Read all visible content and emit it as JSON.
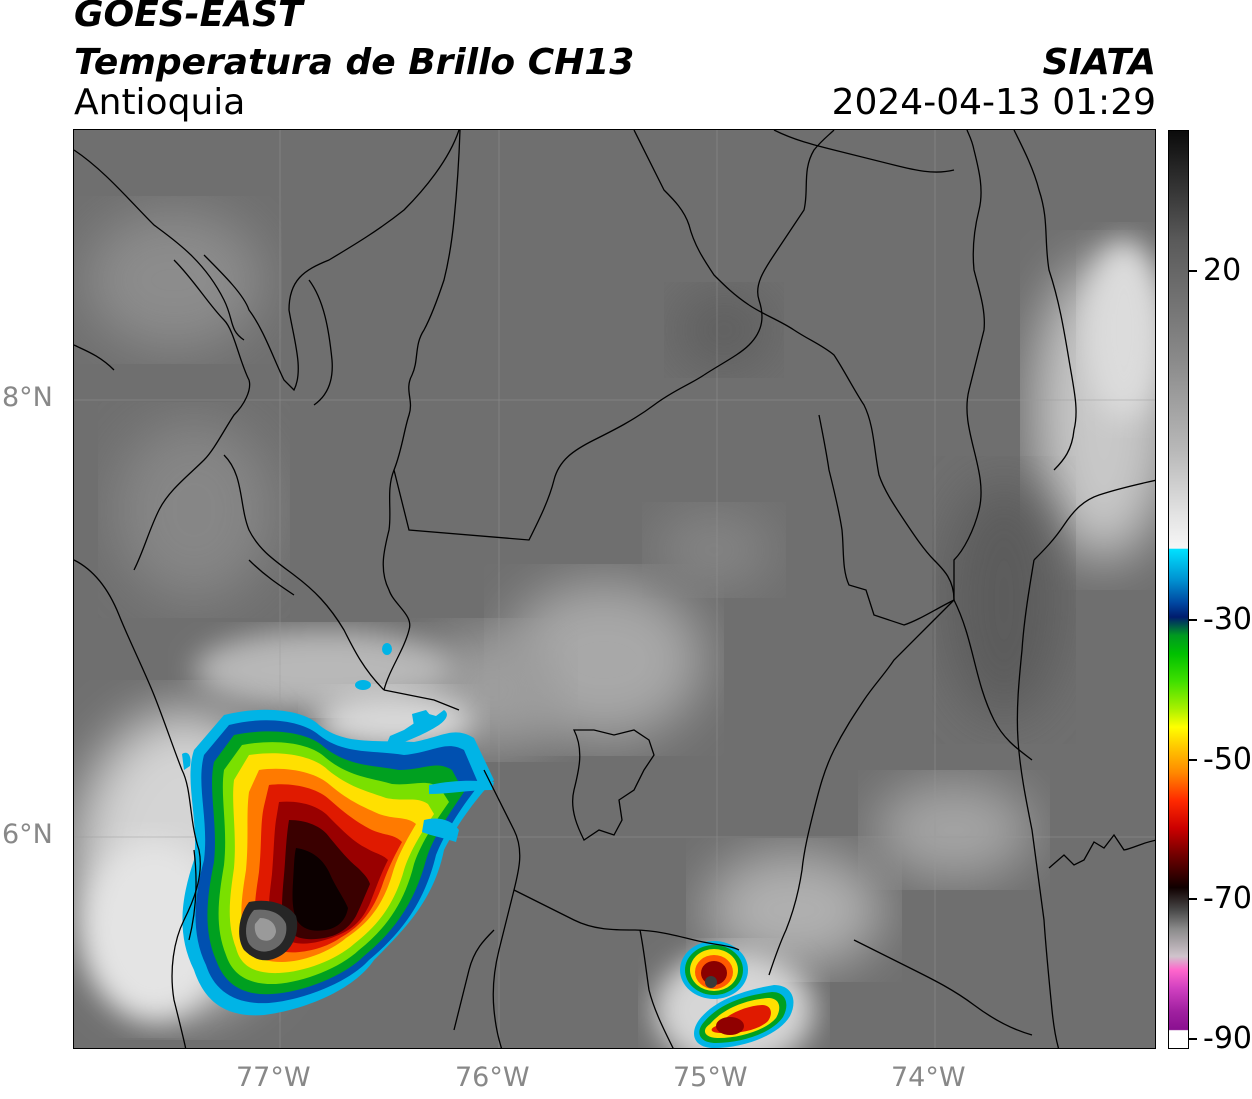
{
  "header": {
    "satellite": "GOES-EAST",
    "product": "Temperatura de Brillo CH13",
    "region": "Antioquia",
    "organization": "SIATA",
    "datetime": "2024-04-13 01:29"
  },
  "map": {
    "lat_labels": [
      "8°N",
      "6°N"
    ],
    "lon_labels": [
      "77°W",
      "76°W",
      "75°W",
      "74°W"
    ],
    "background_color": "#6f6f6f",
    "grid": true
  },
  "colorbar": {
    "tick_labels": [
      "20",
      "-30",
      "-50",
      "-70",
      "-90"
    ]
  },
  "colors": {
    "boundary": "#000000",
    "axis_label": "#888888",
    "storm_outer": "#00b4e6",
    "storm_core": "#0a0000"
  }
}
